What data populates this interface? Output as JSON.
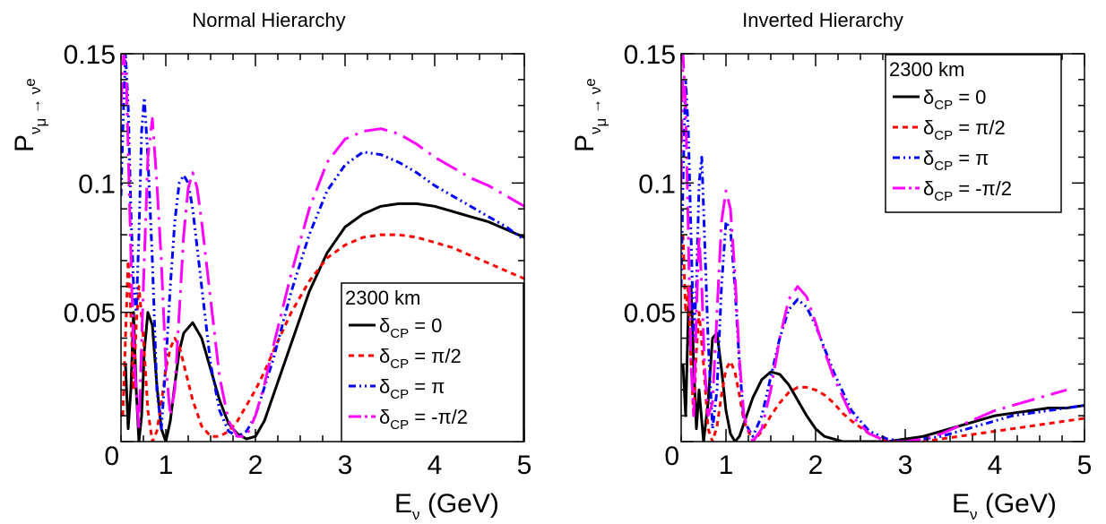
{
  "chart_data": [
    {
      "type": "line",
      "title": "Normal Hierarchy",
      "xlabel": "E",
      "xlabel_sub": "ν",
      "xlabel_unit": "(GeV)",
      "ylabel": "P",
      "ylabel_sub": "ν",
      "ylabel_subsub": "μ",
      "ylabel_arrow": "→",
      "ylabel_sub2": "ν",
      "ylabel_subsub2": "e",
      "xlim": [
        0.5,
        5
      ],
      "ylim": [
        0,
        0.15
      ],
      "xticks": [
        {
          "v": 1,
          "label": "1"
        },
        {
          "v": 2,
          "label": "2"
        },
        {
          "v": 3,
          "label": "3"
        },
        {
          "v": 4,
          "label": "4"
        },
        {
          "v": 5,
          "label": "5"
        }
      ],
      "xtick_zero_label": "0",
      "yticks": [
        {
          "v": 0,
          "label": "0"
        },
        {
          "v": 0.05,
          "label": "0.05"
        },
        {
          "v": 0.1,
          "label": "0.1"
        },
        {
          "v": 0.15,
          "label": "0.15"
        }
      ],
      "legend_position": "bottom-right",
      "legend_title": "2300 km",
      "series": [
        {
          "name": "δCP = 0",
          "name_main": "δ",
          "name_sub": "CP",
          "name_val": " = 0",
          "color": "#000000",
          "dash": "",
          "x": [
            0.55,
            0.58,
            0.61,
            0.64,
            0.67,
            0.7,
            0.73,
            0.76,
            0.8,
            0.85,
            0.9,
            0.95,
            1.0,
            1.05,
            1.1,
            1.15,
            1.2,
            1.3,
            1.4,
            1.5,
            1.6,
            1.7,
            1.8,
            1.9,
            2.0,
            2.1,
            2.2,
            2.4,
            2.6,
            2.8,
            3.0,
            3.2,
            3.4,
            3.6,
            3.8,
            4.0,
            4.2,
            4.4,
            4.6,
            4.8,
            5.0
          ],
          "y": [
            0.03,
            0.005,
            0.02,
            0.05,
            0.02,
            0.0,
            0.01,
            0.035,
            0.05,
            0.045,
            0.022,
            0.005,
            0.0,
            0.008,
            0.022,
            0.035,
            0.042,
            0.046,
            0.04,
            0.028,
            0.016,
            0.007,
            0.003,
            0.001,
            0.002,
            0.008,
            0.018,
            0.038,
            0.058,
            0.073,
            0.083,
            0.088,
            0.091,
            0.092,
            0.092,
            0.091,
            0.089,
            0.087,
            0.085,
            0.082,
            0.079
          ]
        },
        {
          "name": "δCP = π/2",
          "name_main": "δ",
          "name_sub": "CP",
          "name_val": " = π/2",
          "color": "#ff0000",
          "dash": "6,5",
          "x": [
            0.52,
            0.55,
            0.58,
            0.61,
            0.64,
            0.67,
            0.7,
            0.75,
            0.8,
            0.85,
            0.9,
            0.95,
            1.0,
            1.05,
            1.1,
            1.15,
            1.2,
            1.3,
            1.4,
            1.5,
            1.6,
            1.7,
            1.8,
            1.9,
            2.0,
            2.1,
            2.2,
            2.4,
            2.6,
            2.8,
            3.0,
            3.2,
            3.4,
            3.6,
            3.8,
            4.0,
            4.2,
            4.4,
            4.6,
            4.8,
            5.0
          ],
          "y": [
            0.01,
            0.04,
            0.07,
            0.05,
            0.02,
            0.045,
            0.06,
            0.04,
            0.012,
            0.0,
            0.004,
            0.015,
            0.028,
            0.036,
            0.04,
            0.037,
            0.03,
            0.016,
            0.006,
            0.002,
            0.002,
            0.004,
            0.008,
            0.014,
            0.02,
            0.027,
            0.035,
            0.05,
            0.062,
            0.071,
            0.076,
            0.079,
            0.08,
            0.08,
            0.079,
            0.077,
            0.075,
            0.072,
            0.069,
            0.066,
            0.063
          ]
        },
        {
          "name": "δCP = π",
          "name_main": "δ",
          "name_sub": "CP",
          "name_val": " = π",
          "color": "#0000ff",
          "dash": "8,4,2,4,2,4",
          "x": [
            0.5,
            0.52,
            0.55,
            0.58,
            0.61,
            0.64,
            0.67,
            0.7,
            0.73,
            0.76,
            0.8,
            0.85,
            0.9,
            0.95,
            1.0,
            1.05,
            1.1,
            1.15,
            1.2,
            1.25,
            1.3,
            1.4,
            1.5,
            1.6,
            1.7,
            1.8,
            1.9,
            2.0,
            2.2,
            2.4,
            2.6,
            2.8,
            3.0,
            3.2,
            3.4,
            3.6,
            3.8,
            4.0,
            4.2,
            4.4,
            4.6,
            4.8,
            5.0
          ],
          "y": [
            0.095,
            0.12,
            0.15,
            0.13,
            0.09,
            0.06,
            0.05,
            0.08,
            0.12,
            0.133,
            0.11,
            0.07,
            0.02,
            0.005,
            0.03,
            0.06,
            0.085,
            0.1,
            0.103,
            0.1,
            0.09,
            0.06,
            0.03,
            0.012,
            0.004,
            0.002,
            0.004,
            0.01,
            0.032,
            0.058,
            0.08,
            0.097,
            0.107,
            0.112,
            0.111,
            0.108,
            0.104,
            0.099,
            0.095,
            0.091,
            0.087,
            0.083,
            0.078
          ]
        },
        {
          "name": "δCP = -π/2",
          "name_main": "δ",
          "name_sub": "CP",
          "name_val": " = -π/2",
          "color": "#ff00ff",
          "dash": "26,8,3,8",
          "x": [
            0.5,
            0.53,
            0.56,
            0.59,
            0.62,
            0.65,
            0.7,
            0.75,
            0.8,
            0.85,
            0.9,
            0.95,
            1.0,
            1.05,
            1.1,
            1.15,
            1.2,
            1.25,
            1.3,
            1.35,
            1.4,
            1.5,
            1.6,
            1.7,
            1.8,
            1.9,
            2.0,
            2.1,
            2.2,
            2.4,
            2.6,
            2.8,
            3.0,
            3.2,
            3.4,
            3.6,
            3.8,
            4.0,
            4.2,
            4.4,
            4.6,
            4.8,
            5.0
          ],
          "y": [
            0.13,
            0.15,
            0.14,
            0.1,
            0.06,
            0.03,
            0.005,
            0.06,
            0.11,
            0.125,
            0.1,
            0.07,
            0.03,
            0.01,
            0.02,
            0.05,
            0.08,
            0.098,
            0.104,
            0.098,
            0.085,
            0.055,
            0.025,
            0.008,
            0.002,
            0.002,
            0.01,
            0.022,
            0.037,
            0.065,
            0.09,
            0.108,
            0.117,
            0.12,
            0.121,
            0.119,
            0.115,
            0.11,
            0.106,
            0.102,
            0.099,
            0.095,
            0.091
          ]
        }
      ]
    },
    {
      "type": "line",
      "title": "Inverted Hierarchy",
      "xlabel": "E",
      "xlabel_sub": "ν",
      "xlabel_unit": "(GeV)",
      "ylabel": "P",
      "ylabel_sub": "ν",
      "ylabel_subsub": "μ",
      "ylabel_arrow": "→",
      "ylabel_sub2": "ν",
      "ylabel_subsub2": "e",
      "xlim": [
        0.5,
        5
      ],
      "ylim": [
        0,
        0.15
      ],
      "xticks": [
        {
          "v": 1,
          "label": "1"
        },
        {
          "v": 2,
          "label": "2"
        },
        {
          "v": 3,
          "label": "3"
        },
        {
          "v": 4,
          "label": "4"
        },
        {
          "v": 5,
          "label": "5"
        }
      ],
      "xtick_zero_label": "0",
      "yticks": [
        {
          "v": 0,
          "label": "0"
        },
        {
          "v": 0.05,
          "label": "0.05"
        },
        {
          "v": 0.1,
          "label": "0.1"
        },
        {
          "v": 0.15,
          "label": "0.15"
        }
      ],
      "legend_position": "top-right",
      "legend_title": "2300 km",
      "series": [
        {
          "name": "δCP = 0",
          "name_main": "δ",
          "name_sub": "CP",
          "name_val": " = 0",
          "color": "#000000",
          "dash": "",
          "x": [
            0.52,
            0.55,
            0.58,
            0.61,
            0.64,
            0.67,
            0.7,
            0.75,
            0.8,
            0.85,
            0.9,
            0.95,
            1.0,
            1.05,
            1.1,
            1.15,
            1.2,
            1.3,
            1.4,
            1.5,
            1.6,
            1.7,
            1.8,
            1.9,
            2.0,
            2.1,
            2.2,
            2.3,
            2.4,
            2.5,
            2.6,
            2.8,
            3.0,
            3.2,
            3.4,
            3.6,
            3.8,
            4.0,
            4.2,
            4.4,
            4.6,
            4.8,
            5.0
          ],
          "y": [
            0.03,
            0.01,
            0.05,
            0.06,
            0.03,
            0.005,
            0.02,
            0.0,
            0.015,
            0.04,
            0.042,
            0.028,
            0.012,
            0.003,
            0.0,
            0.002,
            0.007,
            0.017,
            0.024,
            0.027,
            0.026,
            0.022,
            0.016,
            0.01,
            0.005,
            0.002,
            0.001,
            0.0,
            0.0,
            0.0,
            0.0,
            0.0,
            0.001,
            0.002,
            0.004,
            0.006,
            0.008,
            0.01,
            0.011,
            0.012,
            0.013,
            0.013,
            0.014
          ]
        },
        {
          "name": "δCP = π/2",
          "name_main": "δ",
          "name_sub": "CP",
          "name_val": " = π/2",
          "color": "#ff0000",
          "dash": "6,5",
          "x": [
            0.52,
            0.55,
            0.58,
            0.61,
            0.64,
            0.67,
            0.7,
            0.75,
            0.8,
            0.85,
            0.9,
            0.95,
            1.0,
            1.05,
            1.1,
            1.15,
            1.2,
            1.3,
            1.4,
            1.5,
            1.6,
            1.7,
            1.8,
            1.9,
            2.0,
            2.1,
            2.2,
            2.3,
            2.4,
            2.6,
            2.8,
            3.0,
            3.2,
            3.4,
            3.6,
            3.8,
            4.0,
            4.2,
            4.4,
            4.6,
            4.8,
            5.0
          ],
          "y": [
            0.08,
            0.05,
            0.06,
            0.03,
            0.01,
            0.035,
            0.05,
            0.03,
            0.005,
            0.0,
            0.006,
            0.018,
            0.028,
            0.031,
            0.027,
            0.018,
            0.008,
            0.0,
            0.004,
            0.01,
            0.015,
            0.019,
            0.021,
            0.021,
            0.02,
            0.018,
            0.015,
            0.011,
            0.008,
            0.003,
            0.0,
            0.0,
            0.0,
            0.001,
            0.002,
            0.003,
            0.004,
            0.005,
            0.006,
            0.007,
            0.008,
            0.009
          ]
        },
        {
          "name": "δCP = π",
          "name_main": "δ",
          "name_sub": "CP",
          "name_val": " = π",
          "color": "#0000ff",
          "dash": "8,4,2,4,2,4",
          "x": [
            0.5,
            0.52,
            0.55,
            0.58,
            0.61,
            0.64,
            0.67,
            0.7,
            0.73,
            0.76,
            0.8,
            0.85,
            0.9,
            0.95,
            1.0,
            1.05,
            1.1,
            1.15,
            1.2,
            1.3,
            1.4,
            1.5,
            1.6,
            1.7,
            1.8,
            1.9,
            2.0,
            2.1,
            2.2,
            2.4,
            2.6,
            2.8,
            3.0,
            3.2,
            3.4,
            3.6,
            3.8,
            4.0,
            4.2,
            4.4,
            4.6,
            4.8,
            5.0
          ],
          "y": [
            0.06,
            0.1,
            0.14,
            0.12,
            0.08,
            0.04,
            0.06,
            0.1,
            0.11,
            0.08,
            0.04,
            0.005,
            0.02,
            0.06,
            0.085,
            0.082,
            0.06,
            0.03,
            0.008,
            0.002,
            0.01,
            0.025,
            0.04,
            0.051,
            0.055,
            0.052,
            0.045,
            0.036,
            0.027,
            0.012,
            0.004,
            0.001,
            0.0,
            0.001,
            0.002,
            0.004,
            0.006,
            0.008,
            0.01,
            0.011,
            0.012,
            0.013,
            0.014
          ]
        },
        {
          "name": "δCP = -π/2",
          "name_main": "δ",
          "name_sub": "CP",
          "name_val": " = -π/2",
          "color": "#ff00ff",
          "dash": "26,8,3,8",
          "x": [
            0.5,
            0.52,
            0.55,
            0.58,
            0.61,
            0.64,
            0.67,
            0.7,
            0.73,
            0.76,
            0.8,
            0.85,
            0.9,
            0.95,
            1.0,
            1.05,
            1.1,
            1.15,
            1.2,
            1.3,
            1.4,
            1.5,
            1.6,
            1.7,
            1.8,
            1.9,
            2.0,
            2.1,
            2.2,
            2.4,
            2.6,
            2.8,
            3.0,
            3.2,
            3.4,
            3.6,
            3.8,
            4.0,
            4.2,
            4.4,
            4.6,
            4.8
          ],
          "y": [
            0.1,
            0.15,
            0.13,
            0.08,
            0.03,
            0.01,
            0.05,
            0.08,
            0.06,
            0.03,
            0.01,
            0.015,
            0.05,
            0.085,
            0.097,
            0.09,
            0.065,
            0.032,
            0.01,
            0.0,
            0.005,
            0.02,
            0.04,
            0.055,
            0.06,
            0.056,
            0.046,
            0.035,
            0.025,
            0.01,
            0.003,
            0.0,
            0.0,
            0.001,
            0.003,
            0.006,
            0.009,
            0.012,
            0.014,
            0.016,
            0.018,
            0.02
          ]
        }
      ]
    }
  ]
}
